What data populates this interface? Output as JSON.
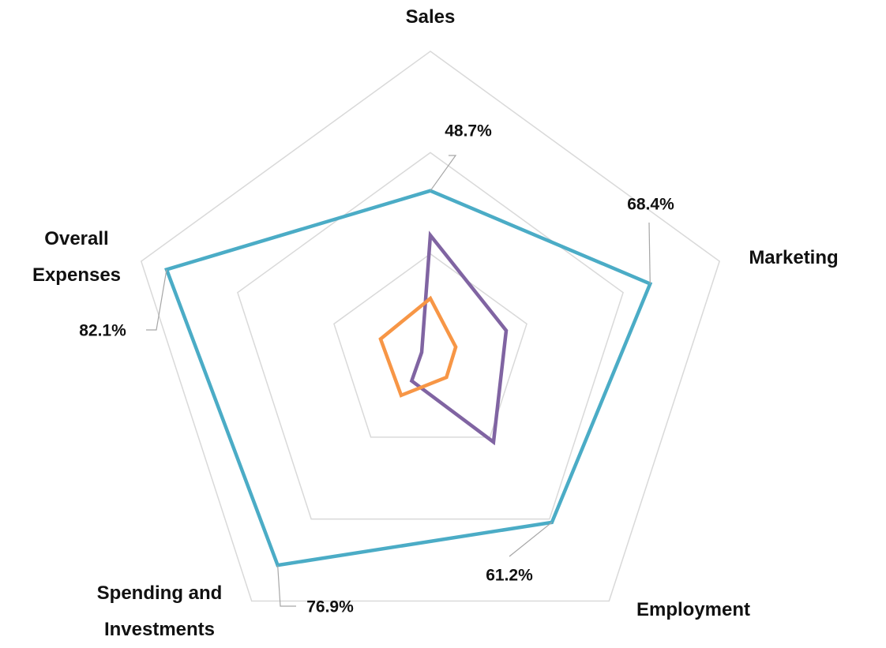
{
  "chart_data": {
    "type": "radar",
    "categories": [
      "Sales",
      "Marketing",
      "Employment",
      "Spending and Investments",
      "Overall Expenses"
    ],
    "series": [
      {
        "color": "#4bacc6",
        "values": [
          48.7,
          68.4,
          61.2,
          76.9,
          82.1
        ],
        "value_labels": [
          "48.7%",
          "68.4%",
          "61.2%",
          "76.9%",
          "82.1%"
        ]
      },
      {
        "color": "#8064a2",
        "values": [
          35.5,
          23.6,
          31.8,
          9.4,
          2.7
        ]
      },
      {
        "color": "#f79646",
        "values": [
          16.8,
          7.9,
          8.1,
          14.7,
          15.5
        ]
      }
    ],
    "ylim": [
      0,
      90
    ],
    "yticks": [
      30,
      60,
      90
    ],
    "grid": true
  }
}
